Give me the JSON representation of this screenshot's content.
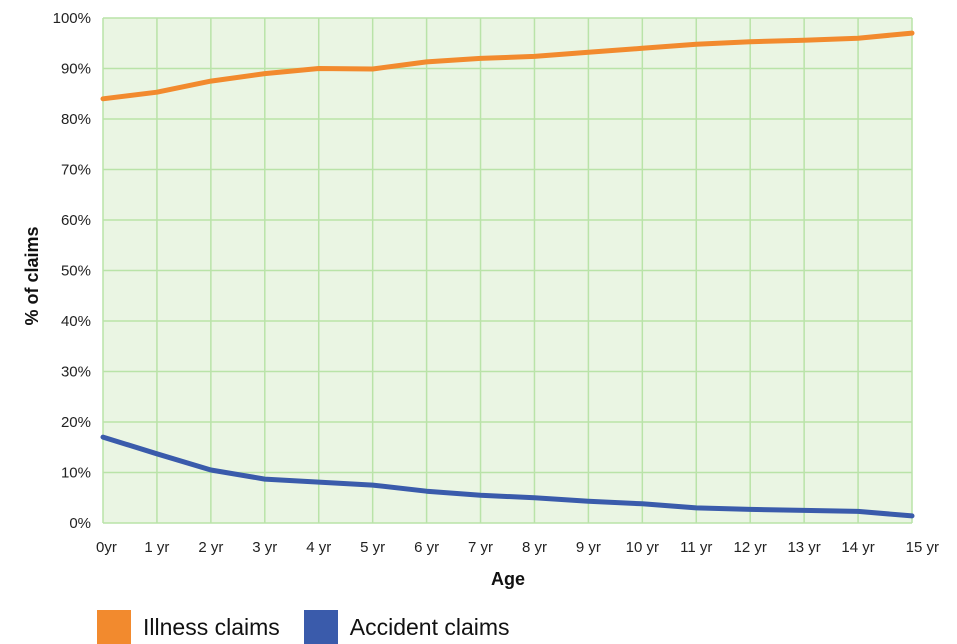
{
  "chart_data": {
    "type": "line",
    "xlabel": "Age",
    "ylabel": "% of claims",
    "categories": [
      "0yr",
      "1 yr",
      "2 yr",
      "3 yr",
      "4 yr",
      "5 yr",
      "6 yr",
      "7 yr",
      "8 yr",
      "9 yr",
      "10 yr",
      "11 yr",
      "12 yr",
      "13 yr",
      "14 yr",
      "15 yr"
    ],
    "y_ticks": [
      "0%",
      "10%",
      "20%",
      "30%",
      "40%",
      "50%",
      "60%",
      "70%",
      "80%",
      "90%",
      "100%"
    ],
    "ylim": [
      0,
      100
    ],
    "grid": true,
    "legend_position": "bottom-left",
    "series": [
      {
        "name": "Illness claims",
        "color": "#f28a2e",
        "values": [
          84,
          85.3,
          87.5,
          89,
          90,
          89.9,
          91.3,
          92,
          92.4,
          93.2,
          94,
          94.8,
          95.3,
          95.6,
          96,
          97
        ]
      },
      {
        "name": "Accident claims",
        "color": "#3a5bab",
        "values": [
          17,
          13.7,
          10.5,
          8.7,
          8.1,
          7.5,
          6.3,
          5.5,
          5,
          4.3,
          3.8,
          3,
          2.7,
          2.5,
          2.3,
          1.4
        ]
      }
    ],
    "plot_background": "#eaf5e3",
    "grid_color": "#b9e3a8"
  }
}
